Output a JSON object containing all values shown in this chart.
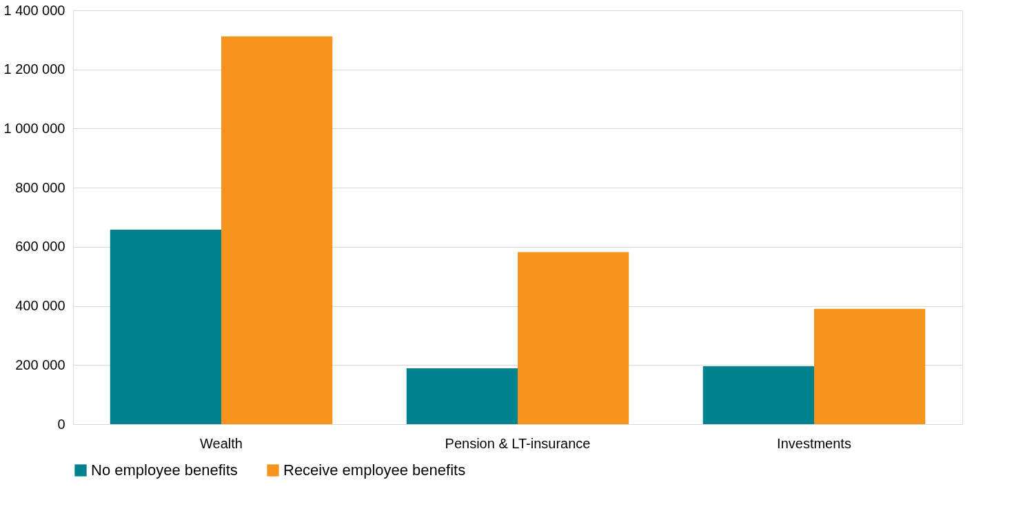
{
  "chart_data": {
    "type": "bar",
    "categories": [
      "Wealth",
      "Pension & LT-insurance",
      "Investments"
    ],
    "series": [
      {
        "name": "No employee benefits",
        "color": "#00838f",
        "values": [
          658000,
          189000,
          196000
        ]
      },
      {
        "name": "Receive employee benefits",
        "color": "#f7941d",
        "values": [
          1312000,
          582000,
          390000
        ]
      }
    ],
    "ylim": [
      0,
      1400000
    ],
    "yticks": [
      0,
      {
        "value": 200000,
        "label": "200 000"
      },
      {
        "value": 400000,
        "label": "400 000"
      },
      {
        "value": 600000,
        "label": "600 000"
      },
      {
        "value": 800000,
        "label": "800 000"
      },
      {
        "value": 1000000,
        "label": "1 000 000"
      },
      {
        "value": 1200000,
        "label": "1 200 000"
      },
      {
        "value": 1400000,
        "label": "1 400 000"
      }
    ],
    "grid": "y",
    "legend": "bottom"
  }
}
